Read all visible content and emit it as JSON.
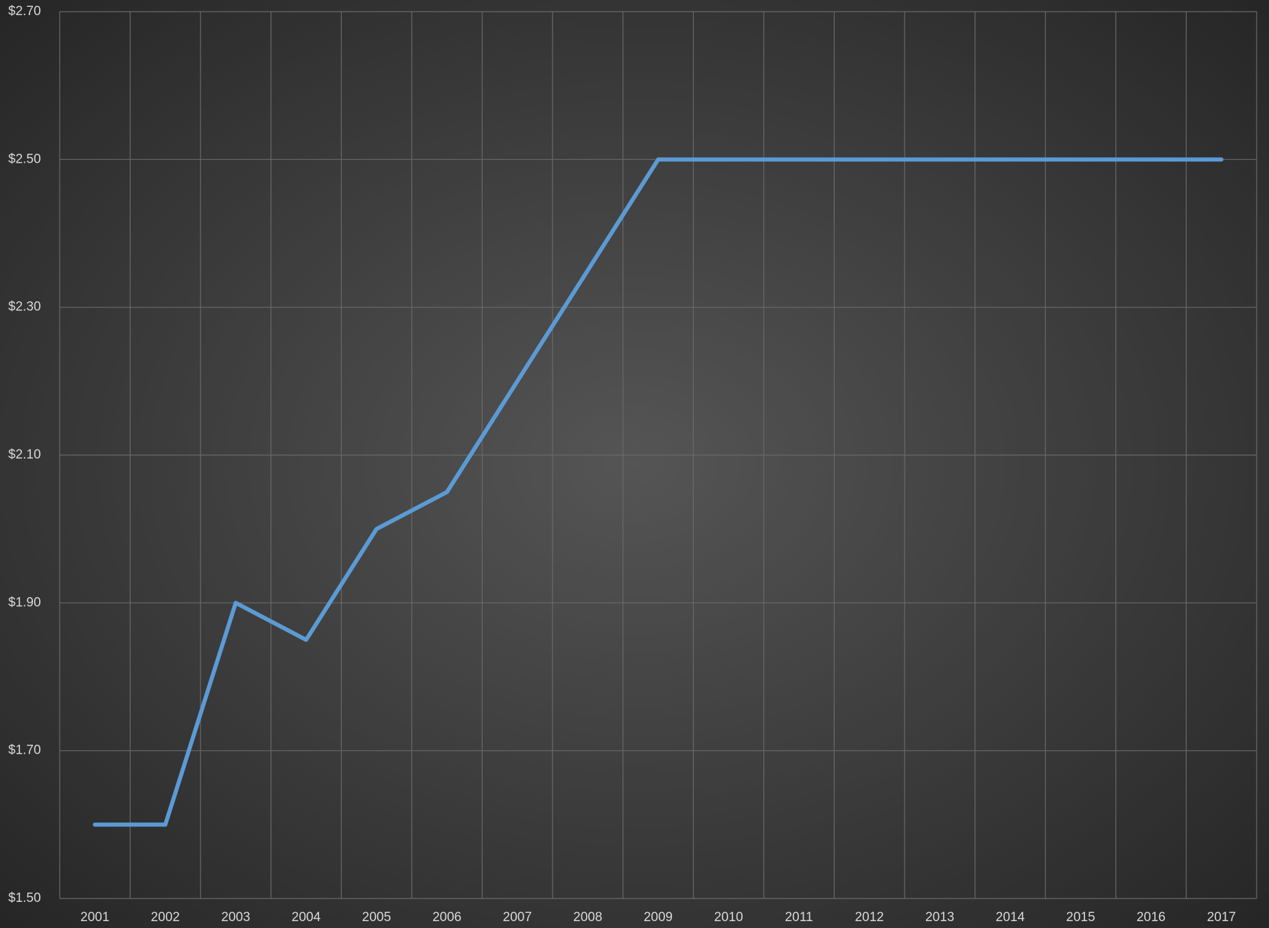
{
  "chart_data": {
    "type": "line",
    "categories": [
      "2001",
      "2002",
      "2003",
      "2004",
      "2005",
      "2006",
      "2007",
      "2008",
      "2009",
      "2010",
      "2011",
      "2012",
      "2013",
      "2014",
      "2015",
      "2016",
      "2017"
    ],
    "series": [
      {
        "color": "#5b9bd5",
        "values": [
          1.6,
          1.6,
          1.9,
          1.85,
          2.0,
          2.05,
          2.2,
          2.35,
          2.5,
          2.5,
          2.5,
          2.5,
          2.5,
          2.5,
          2.5,
          2.5,
          2.5
        ]
      }
    ],
    "ylim": [
      1.5,
      2.7
    ],
    "yticks": [
      {
        "value": 1.5,
        "label": "$1.50"
      },
      {
        "value": 1.7,
        "label": "$1.70"
      },
      {
        "value": 1.9,
        "label": "$1.90"
      },
      {
        "value": 2.1,
        "label": "$2.10"
      },
      {
        "value": 2.3,
        "label": "$2.30"
      },
      {
        "value": 2.5,
        "label": "$2.50"
      },
      {
        "value": 2.7,
        "label": "$2.70"
      }
    ],
    "grid": true
  }
}
